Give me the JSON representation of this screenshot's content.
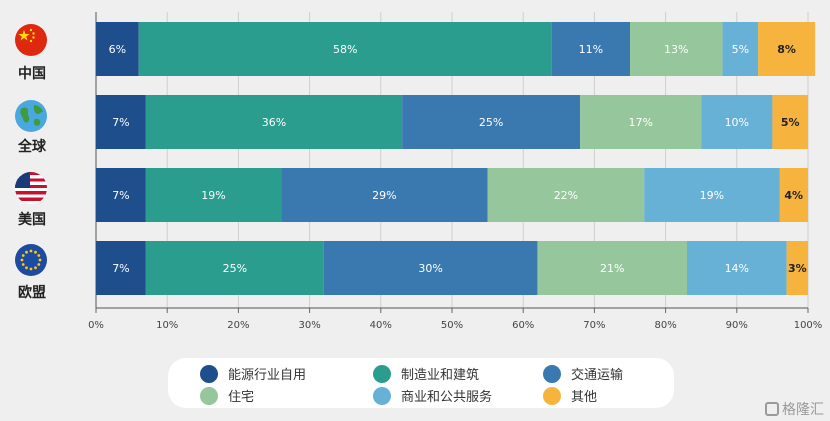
{
  "chart_data": {
    "type": "bar",
    "orientation": "horizontal-stacked-100",
    "categories": [
      "中国",
      "全球",
      "美国",
      "欧盟"
    ],
    "series": [
      {
        "name": "能源行业自用",
        "color": "#1f4e8c",
        "values": [
          6,
          7,
          7,
          7
        ]
      },
      {
        "name": "制造业和建筑",
        "color": "#2a9d8f",
        "values": [
          58,
          36,
          19,
          25
        ]
      },
      {
        "name": "交通运输",
        "color": "#3a78b0",
        "values": [
          11,
          25,
          29,
          30
        ]
      },
      {
        "name": "住宅",
        "color": "#96c69b",
        "values": [
          13,
          17,
          22,
          21
        ]
      },
      {
        "name": "商业和公共服务",
        "color": "#67b0d6",
        "values": [
          5,
          10,
          19,
          14
        ]
      },
      {
        "name": "其他",
        "color": "#f6b33d",
        "values": [
          8,
          5,
          4,
          3
        ]
      }
    ],
    "xlim": [
      0,
      100
    ],
    "xticks": [
      "0%",
      "10%",
      "20%",
      "30%",
      "40%",
      "50%",
      "60%",
      "70%",
      "80%",
      "90%",
      "100%"
    ],
    "grid": true,
    "legend_position": "bottom"
  },
  "regions": [
    {
      "label": "中国",
      "flag": "china-flag-icon"
    },
    {
      "label": "全球",
      "flag": "globe-icon"
    },
    {
      "label": "美国",
      "flag": "usa-flag-icon"
    },
    {
      "label": "欧盟",
      "flag": "eu-flag-icon"
    }
  ],
  "watermark": "格隆汇"
}
